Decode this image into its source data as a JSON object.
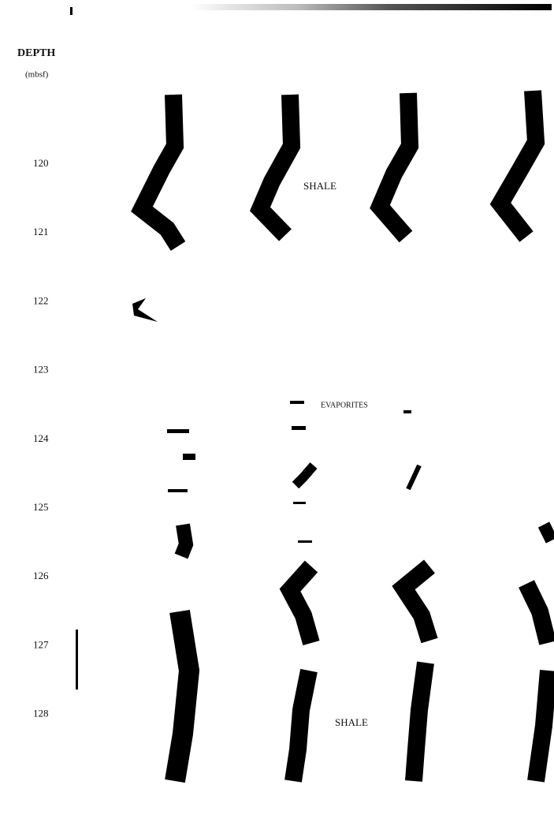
{
  "header": {
    "title": "DEPTH",
    "unit": "(mbsf)"
  },
  "depth_labels": [
    "120",
    "121",
    "122",
    "123",
    "124",
    "125",
    "126",
    "127",
    "128"
  ],
  "annotations": {
    "upper_lithology": "SHALE",
    "middle_lithology": "EVAPORITES",
    "lower_lithology": "SHALE"
  }
}
